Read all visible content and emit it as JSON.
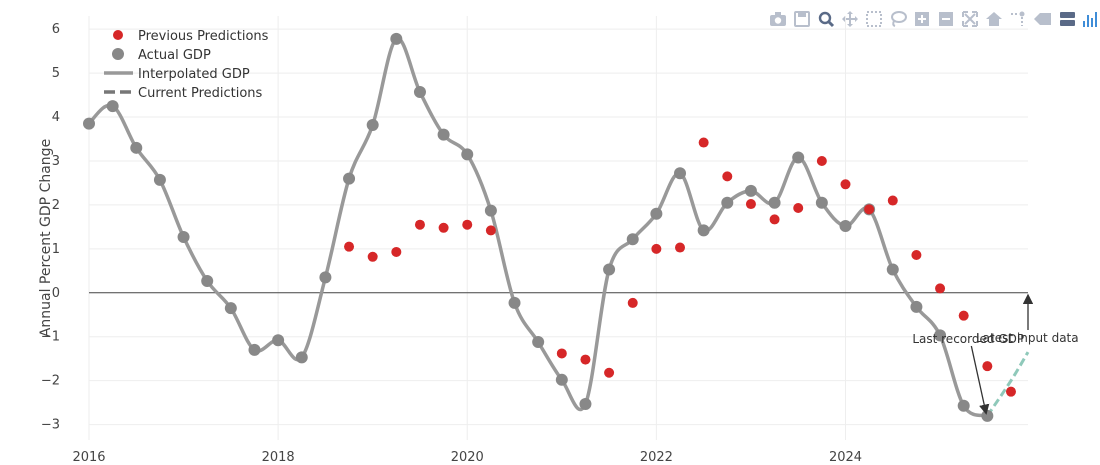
{
  "modebar": {
    "buttons": [
      {
        "name": "camera-icon"
      },
      {
        "name": "save-icon"
      },
      {
        "name": "zoom-icon"
      },
      {
        "name": "pan-icon"
      },
      {
        "name": "box-select-icon"
      },
      {
        "name": "lasso-icon"
      },
      {
        "name": "zoom-in-icon"
      },
      {
        "name": "zoom-out-icon"
      },
      {
        "name": "autoscale-icon"
      },
      {
        "name": "reset-axes-icon"
      },
      {
        "name": "spike-lines-icon"
      },
      {
        "name": "hover-closest-icon"
      },
      {
        "name": "hover-compare-icon"
      },
      {
        "name": "plotly-logo-icon"
      }
    ]
  },
  "chart_data": {
    "type": "line",
    "title": "",
    "xlabel": "",
    "ylabel": "Annual Percent GDP Change",
    "xlim": [
      2016.0,
      2025.93
    ],
    "ylim": [
      -3.35,
      6.3
    ],
    "x_ticks": [
      2016,
      2018,
      2020,
      2022,
      2024
    ],
    "y_ticks": [
      -3,
      -2,
      -1,
      0,
      1,
      2,
      3,
      4,
      5,
      6
    ],
    "grid": true,
    "legend_position": "top-left",
    "colors": {
      "previous": "#d62728",
      "actual": "#888888",
      "interpolated": "#999999",
      "current": "#777777",
      "current_line": "#8fc9ba",
      "zero_line": "#444444"
    },
    "legend": [
      "Previous Predictions",
      "Actual GDP",
      "Interpolated GDP",
      "Current Predictions"
    ],
    "series": [
      {
        "name": "Actual GDP",
        "x": [
          2016.0,
          2016.25,
          2016.5,
          2016.75,
          2017.0,
          2017.25,
          2017.5,
          2017.75,
          2018.0,
          2018.25,
          2018.5,
          2018.75,
          2019.0,
          2019.25,
          2019.5,
          2019.75,
          2020.0,
          2020.25,
          2020.5,
          2020.75,
          2021.0,
          2021.25,
          2021.5,
          2021.75,
          2022.0,
          2022.25,
          2022.5,
          2022.75,
          2023.0,
          2023.25,
          2023.5,
          2023.75,
          2024.0,
          2024.25,
          2024.5,
          2024.75,
          2025.0,
          2025.25,
          2025.5
        ],
        "values": [
          3.85,
          4.25,
          3.3,
          2.57,
          1.27,
          0.27,
          -0.35,
          -1.3,
          -1.08,
          -1.47,
          0.35,
          2.6,
          3.82,
          5.78,
          4.57,
          3.6,
          3.15,
          1.87,
          -0.23,
          -1.12,
          -1.98,
          -2.53,
          0.53,
          1.22,
          1.8,
          2.72,
          1.42,
          2.05,
          2.32,
          2.05,
          3.08,
          2.05,
          1.52,
          1.9,
          0.53,
          -0.32,
          -0.97,
          -2.57,
          -2.8
        ]
      },
      {
        "name": "Previous Predictions",
        "x": [
          2018.75,
          2019.0,
          2019.25,
          2019.5,
          2019.75,
          2020.0,
          2020.25,
          2021.0,
          2021.25,
          2021.5,
          2021.75,
          2022.0,
          2022.25,
          2022.5,
          2022.75,
          2023.0,
          2023.25,
          2023.5,
          2023.75,
          2024.0,
          2024.25,
          2024.5,
          2024.75,
          2025.0,
          2025.25,
          2025.5,
          2025.75
        ],
        "values": [
          1.05,
          0.82,
          0.93,
          1.55,
          1.48,
          1.55,
          1.42,
          -1.38,
          -1.52,
          -1.82,
          -0.23,
          1.0,
          1.03,
          3.42,
          2.65,
          2.02,
          1.67,
          1.93,
          3.0,
          2.47,
          1.9,
          2.1,
          0.86,
          0.1,
          -0.52,
          -1.67,
          -2.25
        ]
      },
      {
        "name": "Current Predictions",
        "x": [
          2025.5,
          2025.75,
          2025.93
        ],
        "values": [
          -2.8,
          -2.0,
          -1.35
        ]
      }
    ],
    "annotations": [
      {
        "text": "Last recorded GDP",
        "x": 2025.5,
        "y": -2.8
      },
      {
        "text": "Latest input data",
        "x": 2025.93,
        "y": 0
      }
    ]
  }
}
